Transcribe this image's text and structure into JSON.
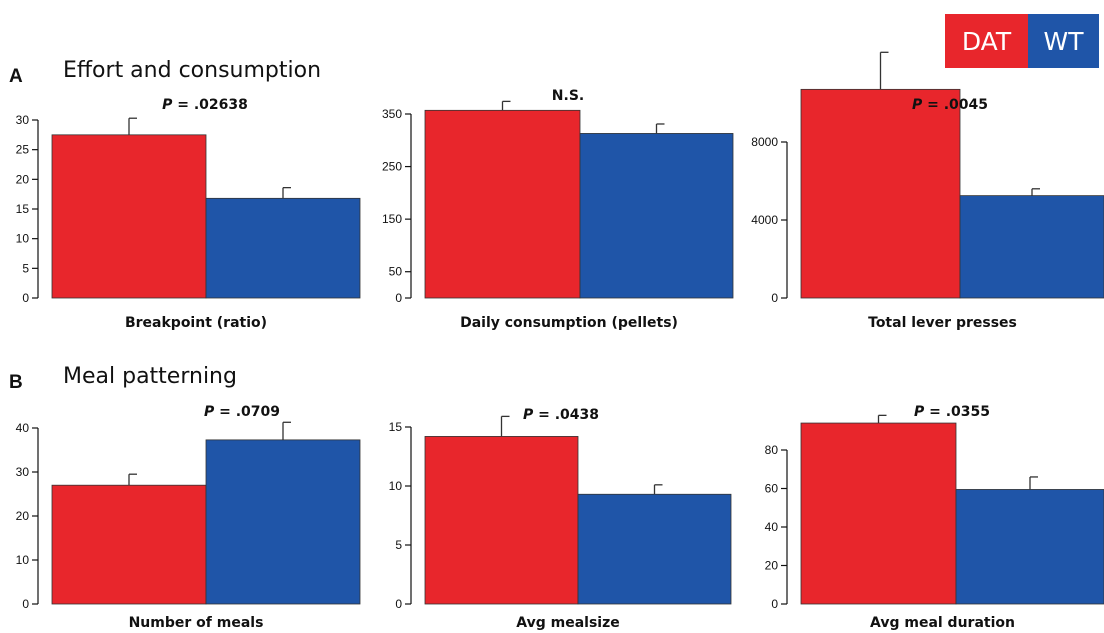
{
  "legend": {
    "items": [
      {
        "label": "DAT",
        "color": "#e8262c"
      },
      {
        "label": "WT",
        "color": "#1f55a8"
      }
    ]
  },
  "panels": [
    {
      "letter": "A",
      "title": "Effort and consumption"
    },
    {
      "letter": "B",
      "title": "Meal patterning"
    }
  ],
  "colors": {
    "dat": "#e8262c",
    "wt": "#1f55a8"
  },
  "chart_data": [
    {
      "type": "bar",
      "categories": [
        "DAT",
        "WT"
      ],
      "values": [
        27.5,
        16.8
      ],
      "errors": [
        2.8,
        1.8
      ],
      "xlabel": "Breakpoint (ratio)",
      "ylim": [
        0,
        30
      ],
      "yticks": [
        0,
        5,
        10,
        15,
        20,
        25,
        30
      ],
      "annotation_p": "P",
      "annotation_val": " = .02638"
    },
    {
      "type": "bar",
      "categories": [
        "DAT",
        "WT"
      ],
      "values": [
        357,
        313
      ],
      "errors": [
        17,
        18
      ],
      "xlabel": "Daily consumption (pellets)",
      "ylim": [
        0,
        390
      ],
      "yticks": [
        0,
        50,
        150,
        250,
        350
      ],
      "annotation_p": "",
      "annotation_val": "N.S."
    },
    {
      "type": "bar",
      "categories": [
        "DAT",
        "WT"
      ],
      "values": [
        10700,
        5250
      ],
      "errors": [
        1900,
        350
      ],
      "xlabel": "Total lever presses",
      "ylim": [
        0,
        11500
      ],
      "yticks": [
        0,
        4000,
        8000
      ],
      "annotation_p": "P",
      "annotation_val": " = .0045"
    },
    {
      "type": "bar",
      "categories": [
        "DAT",
        "WT"
      ],
      "values": [
        27,
        37.3
      ],
      "errors": [
        2.5,
        4.0
      ],
      "xlabel": "Number of meals",
      "ylim": [
        0,
        41
      ],
      "yticks": [
        0,
        10,
        20,
        30,
        40
      ],
      "annotation_p": "P",
      "annotation_val": " = .0709"
    },
    {
      "type": "bar",
      "categories": [
        "DAT",
        "WT"
      ],
      "values": [
        14.2,
        9.3
      ],
      "errors": [
        1.7,
        0.8
      ],
      "xlabel": "Avg mealsize",
      "ylim": [
        0,
        16
      ],
      "yticks": [
        0,
        5,
        10,
        15
      ],
      "annotation_p": "P",
      "annotation_val": " = .0438"
    },
    {
      "type": "bar",
      "categories": [
        "DAT",
        "WT"
      ],
      "values": [
        94,
        59.5
      ],
      "errors": [
        4,
        6.5
      ],
      "xlabel": "Avg meal duration",
      "ylim": [
        0,
        100
      ],
      "yticks": [
        0,
        20,
        40,
        60,
        80
      ],
      "annotation_p": "P",
      "annotation_val": " = .0355"
    }
  ]
}
